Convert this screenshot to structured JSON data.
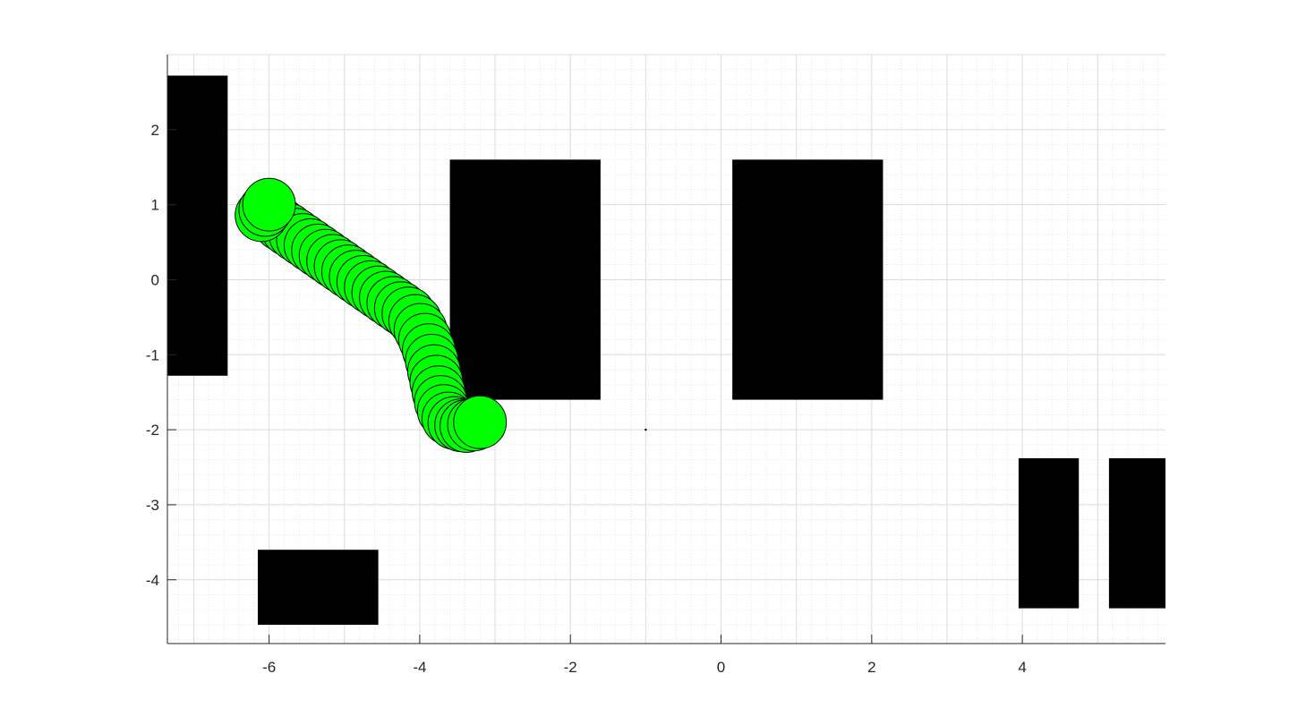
{
  "chart_data": {
    "type": "scatter",
    "title": "",
    "xlabel": "",
    "ylabel": "",
    "xlim": [
      -7.35,
      5.9
    ],
    "ylim": [
      -4.85,
      3.0
    ],
    "xticks": [
      -6,
      -4,
      -2,
      0,
      2,
      4
    ],
    "yticks": [
      -4,
      -3,
      -2,
      -1,
      0,
      1,
      2
    ],
    "xtick_labels": [
      "-6",
      "-4",
      "-2",
      "0",
      "2",
      "4"
    ],
    "ytick_labels": [
      "-4",
      "-3",
      "-2",
      "-1",
      "0",
      "1",
      "2"
    ],
    "grid": true,
    "minor_grid": true,
    "minor_step": 0.2,
    "obstacle_color": "#000000",
    "robot_color": "#00ff00",
    "robot_radius": 0.35,
    "obstacles": [
      {
        "x0": -7.35,
        "x1": -6.55,
        "y0": -1.28,
        "y1": 2.72
      },
      {
        "x0": -3.6,
        "x1": -1.6,
        "y0": -1.6,
        "y1": 1.6
      },
      {
        "x0": 0.15,
        "x1": 2.15,
        "y0": -1.6,
        "y1": 1.6
      },
      {
        "x0": -6.15,
        "x1": -4.55,
        "y0": -4.6,
        "y1": -3.6
      },
      {
        "x0": 3.95,
        "x1": 4.75,
        "y0": -4.38,
        "y1": -2.38
      },
      {
        "x0": 5.15,
        "x1": 5.9,
        "y0": -4.38,
        "y1": -2.38
      }
    ],
    "trajectory": {
      "x": [
        -6.05,
        -5.95,
        -5.85,
        -5.75,
        -5.65,
        -5.55,
        -5.45,
        -5.35,
        -5.25,
        -5.15,
        -5.05,
        -4.95,
        -4.85,
        -4.75,
        -4.65,
        -4.55,
        -4.45,
        -4.35,
        -4.25,
        -4.15,
        -4.06,
        -3.99,
        -3.93,
        -3.88,
        -3.84,
        -3.81,
        -3.78,
        -3.75,
        -3.72,
        -3.68,
        -3.62,
        -3.54,
        -3.45,
        -3.38,
        -3.28,
        -3.2,
        -6.1,
        -6.05,
        -6.0
      ],
      "y": [
        0.9,
        0.82,
        0.74,
        0.67,
        0.6,
        0.53,
        0.46,
        0.39,
        0.32,
        0.25,
        0.18,
        0.11,
        0.04,
        -0.03,
        -0.1,
        -0.17,
        -0.24,
        -0.31,
        -0.38,
        -0.45,
        -0.55,
        -0.67,
        -0.8,
        -0.94,
        -1.08,
        -1.22,
        -1.36,
        -1.5,
        -1.63,
        -1.75,
        -1.85,
        -1.91,
        -1.94,
        -1.95,
        -1.93,
        -1.9,
        0.86,
        0.93,
        1.0
      ]
    },
    "marker": {
      "x": -1.0,
      "y": -2.0
    }
  }
}
